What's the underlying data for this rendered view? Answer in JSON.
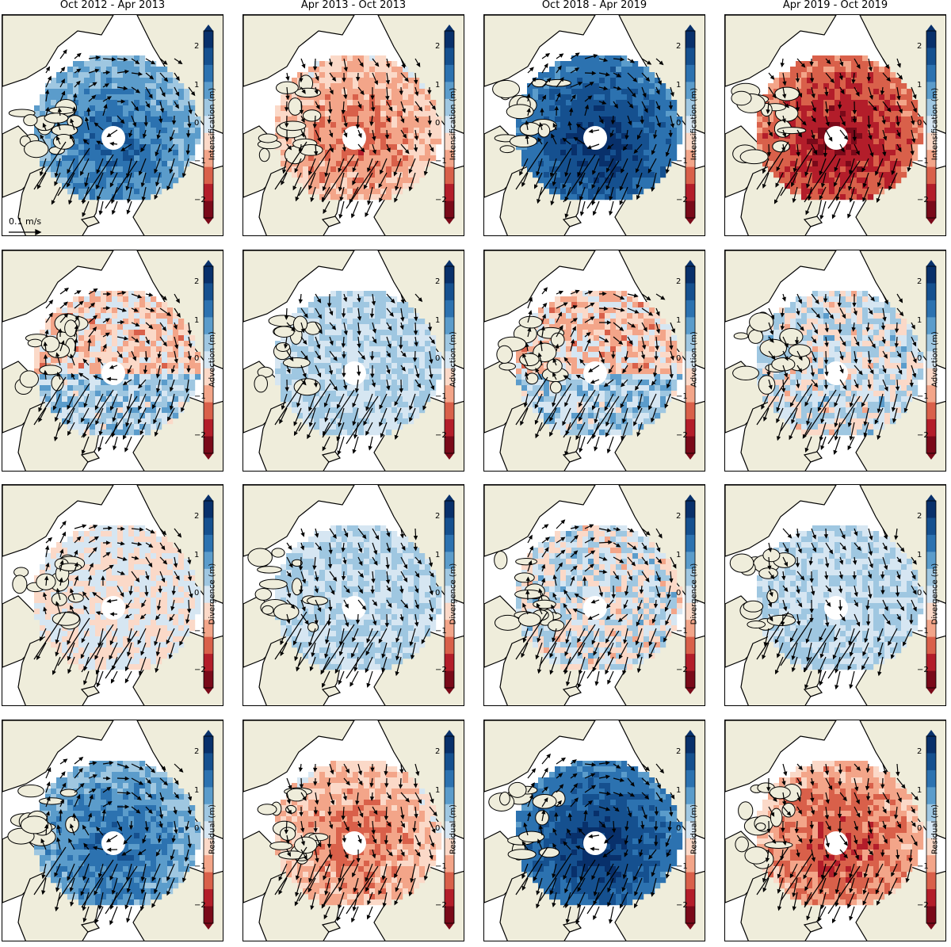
{
  "columns": [
    "Oct 2012 - Apr 2013",
    "Apr 2013 - Oct 2013",
    "Oct 2018 - Apr 2019",
    "Apr 2019 - Oct 2019"
  ],
  "rows": [
    "Intensification (m)",
    "Advection (m)",
    "Divergence (m)",
    "Residual (m)"
  ],
  "colorbar": {
    "ticks": [
      "2",
      "1",
      "0",
      "−1",
      "−2"
    ],
    "colors": [
      "#08306b",
      "#15508f",
      "#2c72b0",
      "#5b9ccb",
      "#9fc7e1",
      "#d6e6f2",
      "#fbd9c8",
      "#f3a589",
      "#d9604a",
      "#b31d2a",
      "#7a0919"
    ]
  },
  "scale_bar": {
    "label": "0.1 m/s"
  },
  "colors": {
    "land": "#efeddb",
    "ocean": "#ffffff",
    "coast": "#000000",
    "arrow": "#000000"
  },
  "panels": [
    [
      {
        "field": "blue-strong"
      },
      {
        "field": "red-medium"
      },
      {
        "field": "blue-strongest"
      },
      {
        "field": "red-strongest"
      }
    ],
    [
      {
        "field": "mixed-red"
      },
      {
        "field": "weak-blue"
      },
      {
        "field": "mixed-red"
      },
      {
        "field": "mixed"
      }
    ],
    [
      {
        "field": "weak-red"
      },
      {
        "field": "weak-blue"
      },
      {
        "field": "mixed"
      },
      {
        "field": "weak-blue"
      }
    ],
    [
      {
        "field": "blue-strong"
      },
      {
        "field": "red-medium"
      },
      {
        "field": "blue-strongest"
      },
      {
        "field": "red-strong"
      }
    ]
  ]
}
